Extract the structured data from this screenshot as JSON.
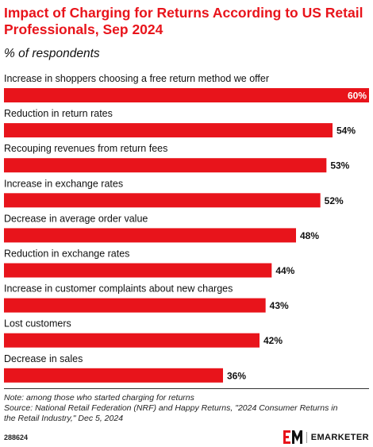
{
  "header": {
    "title": "Impact of Charging for Returns According to US Retail Professionals, Sep 2024",
    "subtitle": "% of respondents"
  },
  "chart_data": {
    "type": "bar",
    "orientation": "horizontal",
    "title": "Impact of Charging for Returns According to US Retail Professionals, Sep 2024",
    "subtitle": "% of respondents",
    "categories": [
      "Increase in shoppers choosing a free return method we offer",
      "Reduction in return rates",
      "Recouping revenues from return fees",
      "Increase in exchange rates",
      "Decrease in average order value",
      "Reduction in exchange rates",
      "Increase in customer complaints about new charges",
      "Lost customers",
      "Decrease in sales"
    ],
    "values": [
      60,
      54,
      53,
      52,
      48,
      44,
      43,
      42,
      36
    ],
    "value_labels": [
      "60%",
      "54%",
      "53%",
      "52%",
      "48%",
      "44%",
      "43%",
      "42%",
      "36%"
    ],
    "xlim": [
      0,
      60
    ],
    "grid": false,
    "bar_color": "#e8141b"
  },
  "footer": {
    "note": "Note: among those who started charging for returns",
    "source_line1": "Source: National Retail Federation (NRF) and Happy Returns, \"2024 Consumer Returns in",
    "source_line2": "the Retail Industry,\" Dec 5, 2024",
    "chart_id": "288624",
    "brand_name": "EMARKETER"
  },
  "colors": {
    "accent": "#e8141b",
    "text": "#111111"
  }
}
